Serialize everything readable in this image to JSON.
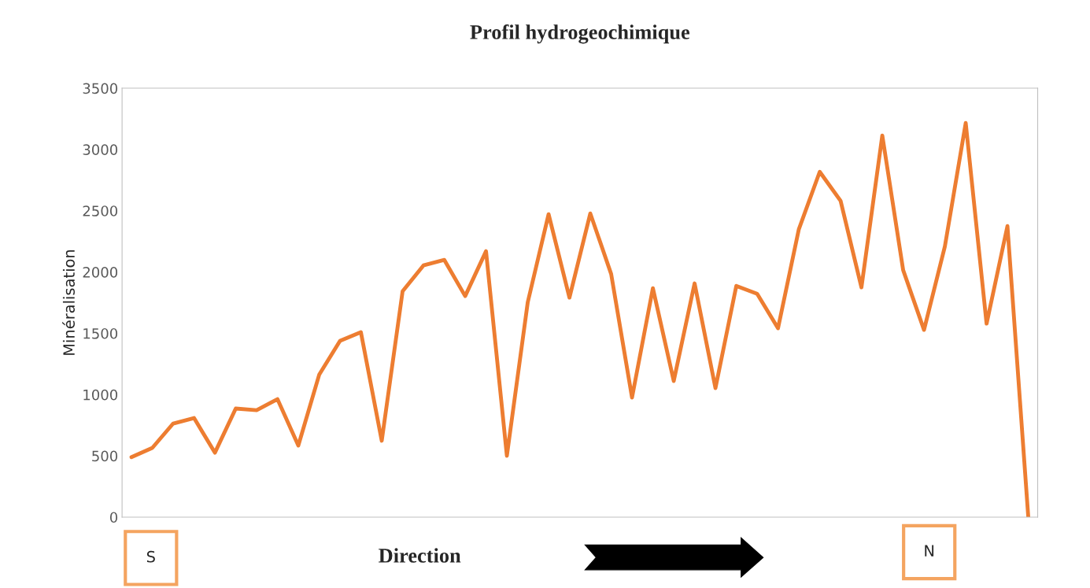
{
  "chart_data": {
    "type": "line",
    "title": "Profil hydrogeochimique",
    "xlabel": "Direction",
    "ylabel": "Minéralisation",
    "categories": [
      null,
      null,
      null,
      null,
      null,
      null,
      null,
      null,
      null,
      null,
      null,
      null,
      null,
      null,
      null,
      null,
      null,
      null,
      null,
      null,
      null,
      null,
      null,
      null,
      null,
      null,
      null,
      null,
      null,
      null,
      null,
      null,
      null,
      null,
      null,
      null,
      null,
      null,
      null,
      null,
      null,
      null,
      null,
      null
    ],
    "series": [
      {
        "color": "#ed7d31",
        "values": [
          490,
          565,
          764,
          809,
          526,
          886,
          873,
          963,
          584,
          1162,
          1438,
          1509,
          623,
          1843,
          2054,
          2099,
          1804,
          2170,
          501,
          1753,
          2472,
          1791,
          2478,
          1984,
          976,
          1868,
          1111,
          1907,
          1053,
          1887,
          1823,
          1541,
          2350,
          2818,
          2581,
          1875,
          3114,
          2016,
          1528,
          2208,
          3216,
          1579,
          2375,
          0
        ]
      }
    ],
    "ylim": [
      0,
      3500
    ],
    "yticks": [
      0,
      500,
      1000,
      1500,
      2000,
      2500,
      3000,
      3500
    ],
    "grid": false,
    "marker": "none",
    "line_style": "solid",
    "legend": false,
    "annotations": [
      "S",
      "N"
    ]
  }
}
